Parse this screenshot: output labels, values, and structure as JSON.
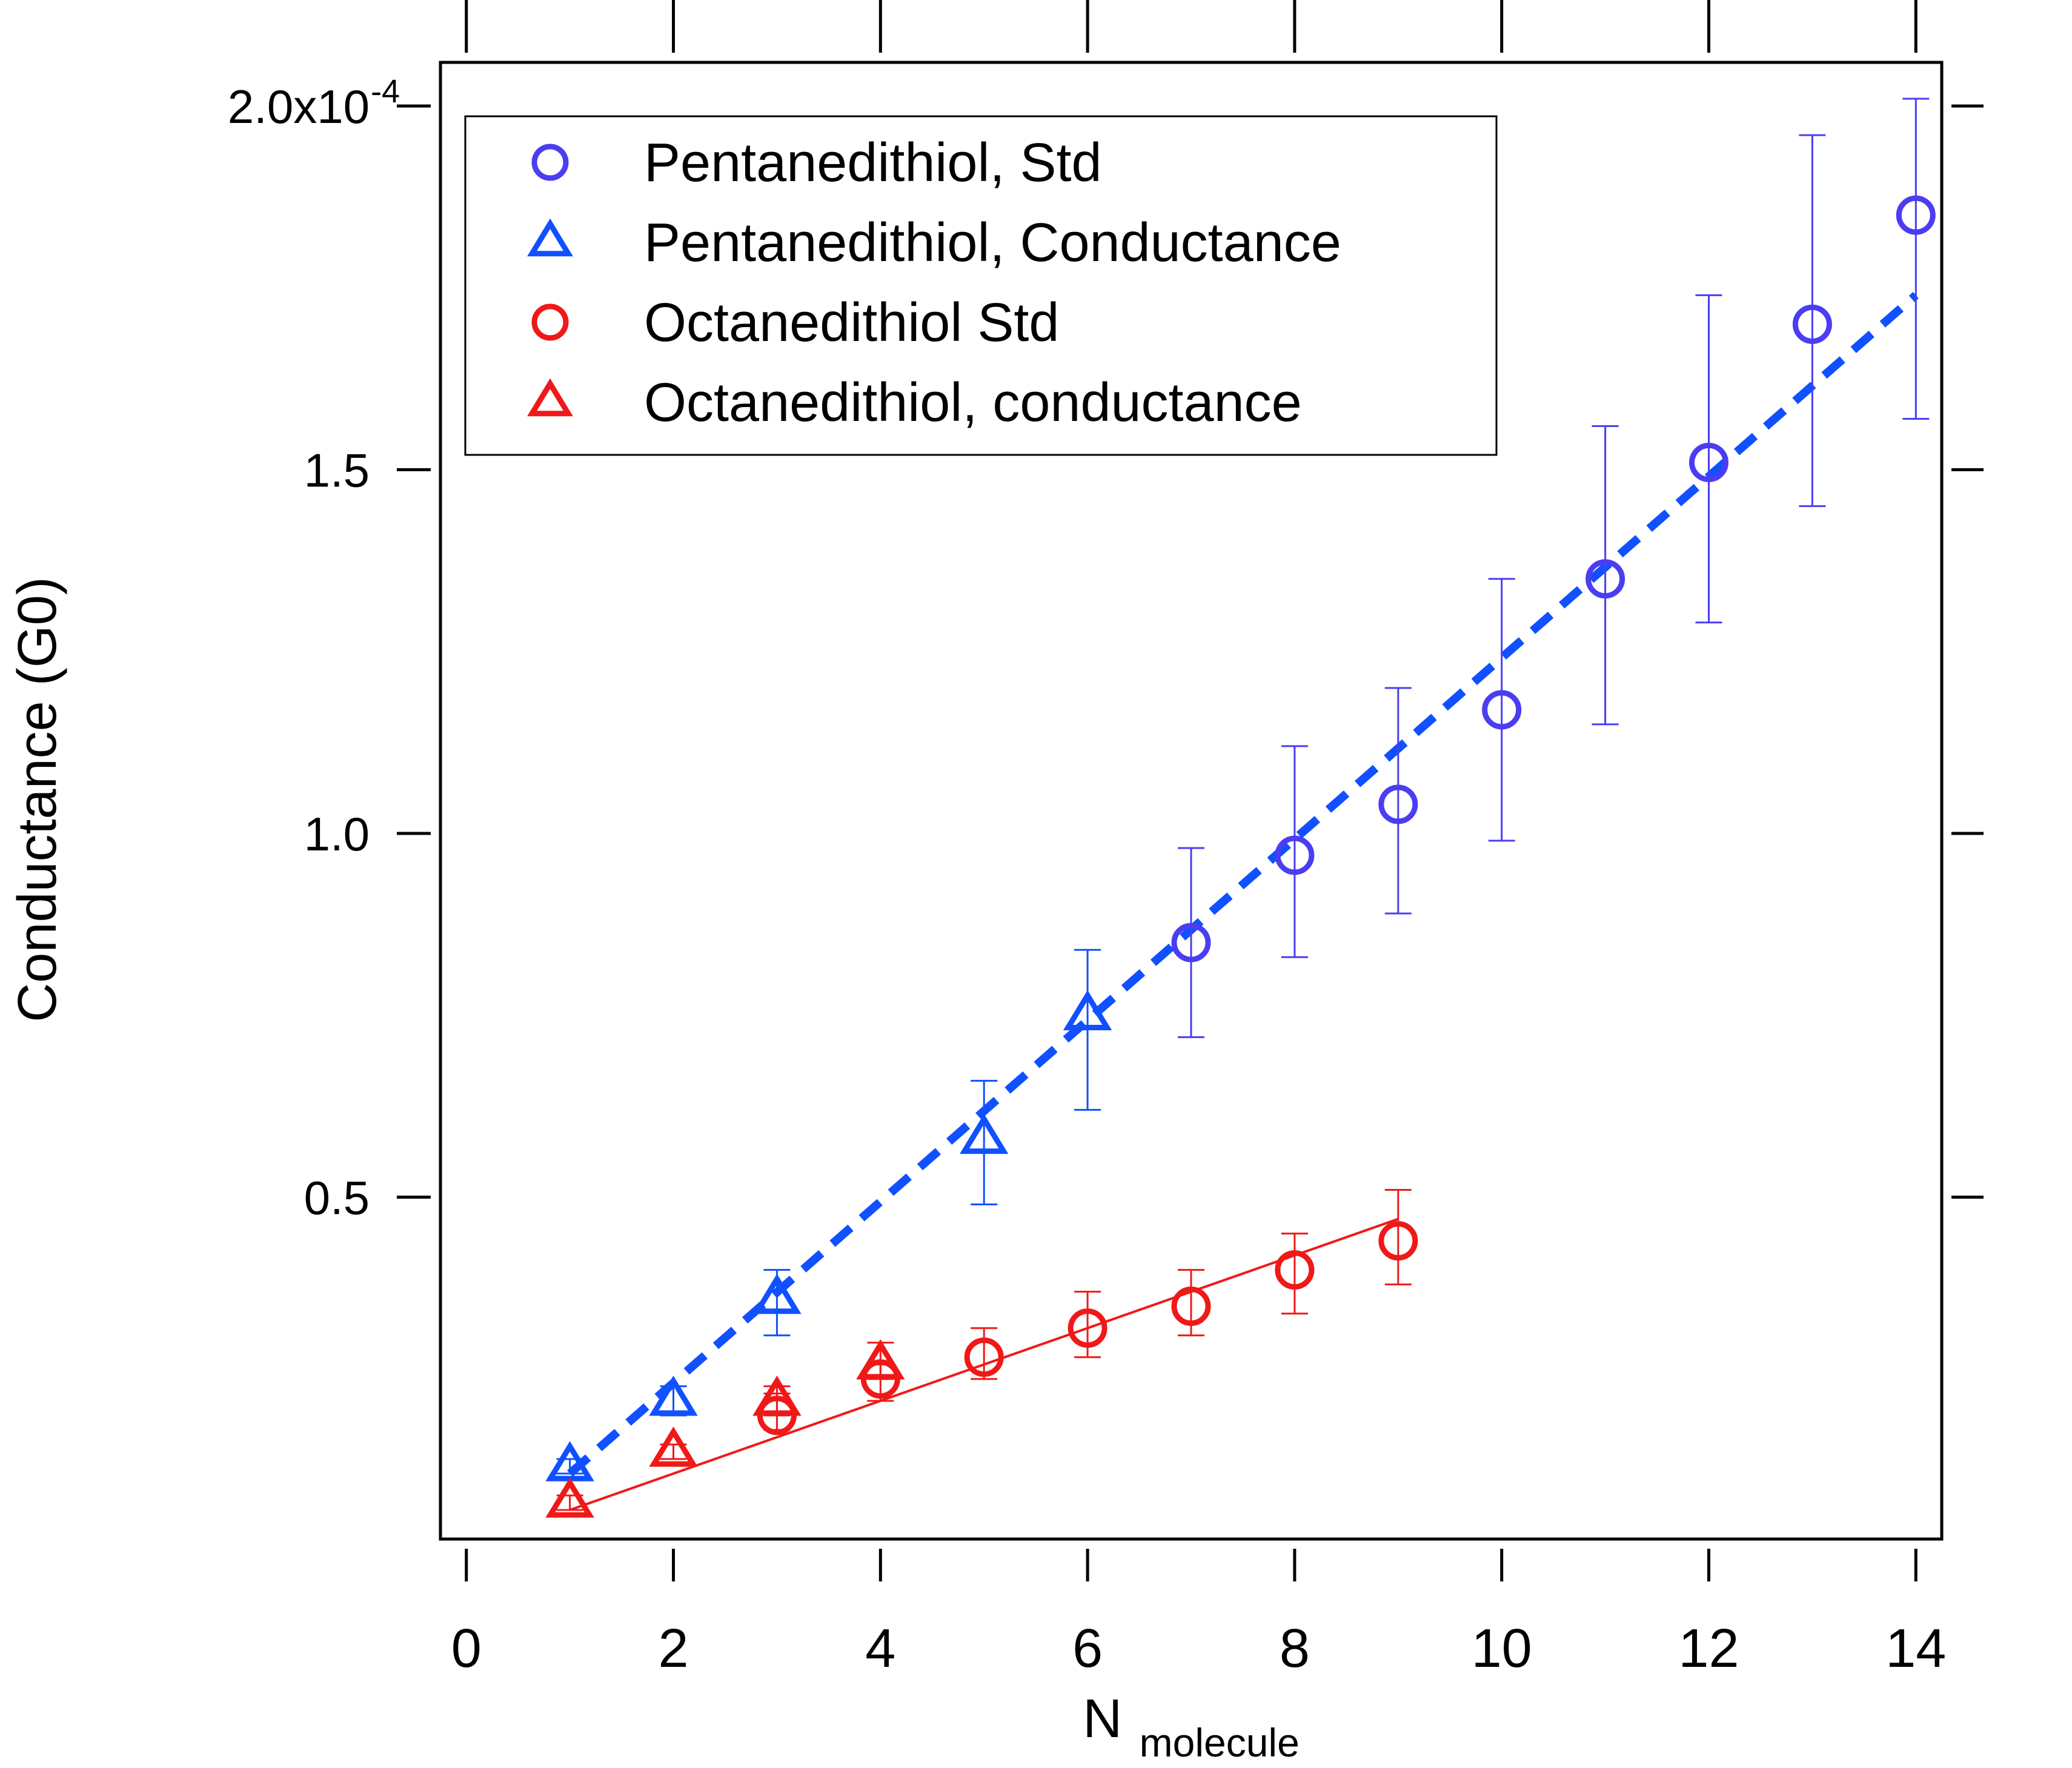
{
  "chart_data": {
    "type": "scatter",
    "title": "",
    "xlabel": "N",
    "xlabel_sub": "molecule",
    "ylabel": "Conductance (G0)",
    "xlim": [
      -0.25,
      14.25
    ],
    "ylim": [
      0.03,
      2.06
    ],
    "y_exponent_label": "-4",
    "x_ticks": [
      {
        "value": 0,
        "label": "0"
      },
      {
        "value": 2,
        "label": "2"
      },
      {
        "value": 4,
        "label": "4"
      },
      {
        "value": 6,
        "label": "6"
      },
      {
        "value": 8,
        "label": "8"
      },
      {
        "value": 10,
        "label": "10"
      },
      {
        "value": 12,
        "label": "12"
      },
      {
        "value": 14,
        "label": "14"
      }
    ],
    "y_ticks": [
      {
        "value": 0.5,
        "label": "0.5"
      },
      {
        "value": 1.0,
        "label": "1.0"
      },
      {
        "value": 1.5,
        "label": "1.5"
      },
      {
        "value": 2.0,
        "label": "2.0x10"
      }
    ],
    "grid": false,
    "legend_position": "top-left",
    "series": [
      {
        "name": "Pentanedithiol, Std",
        "marker": "circle",
        "color": "#4a3df2",
        "x": [
          7,
          8,
          9,
          10,
          11,
          12,
          13,
          14
        ],
        "y": [
          0.85,
          0.97,
          1.04,
          1.17,
          1.35,
          1.51,
          1.7,
          1.85
        ],
        "err_low": [
          0.72,
          0.83,
          0.89,
          0.99,
          1.15,
          1.29,
          1.45,
          1.57
        ],
        "err_high": [
          0.98,
          1.12,
          1.2,
          1.35,
          1.56,
          1.74,
          1.96,
          2.01
        ]
      },
      {
        "name": "Pentanedithiol, Conductance",
        "marker": "triangle",
        "color": "#1050ff",
        "x": [
          1,
          2,
          3,
          5,
          6
        ],
        "y": [
          0.13,
          0.22,
          0.36,
          0.58,
          0.75
        ],
        "err_low": [
          0.12,
          0.2,
          0.31,
          0.49,
          0.62
        ],
        "err_high": [
          0.14,
          0.24,
          0.4,
          0.66,
          0.84
        ]
      },
      {
        "name": "Octanedithiol Std",
        "marker": "circle",
        "color": "#f01818",
        "x": [
          3,
          4,
          5,
          6,
          7,
          8,
          9
        ],
        "y": [
          0.2,
          0.25,
          0.28,
          0.32,
          0.35,
          0.4,
          0.44
        ],
        "err_low": [
          0.18,
          0.22,
          0.25,
          0.28,
          0.31,
          0.34,
          0.38
        ],
        "err_high": [
          0.23,
          0.27,
          0.32,
          0.37,
          0.4,
          0.45,
          0.51
        ]
      },
      {
        "name": "Octanedithiol, conductance",
        "marker": "triangle",
        "color": "#f01818",
        "x": [
          1,
          2,
          3,
          4
        ],
        "y": [
          0.08,
          0.15,
          0.22,
          0.27
        ],
        "err_low": [
          0.07,
          0.14,
          0.2,
          0.25
        ],
        "err_high": [
          0.09,
          0.16,
          0.24,
          0.3
        ]
      }
    ],
    "fits": [
      {
        "style": "dashed",
        "color": "#1050ff",
        "x": [
          1,
          14
        ],
        "y": [
          0.12,
          1.74
        ]
      },
      {
        "style": "solid",
        "color": "#f01818",
        "x": [
          1,
          9
        ],
        "y": [
          0.07,
          0.47
        ]
      }
    ]
  }
}
